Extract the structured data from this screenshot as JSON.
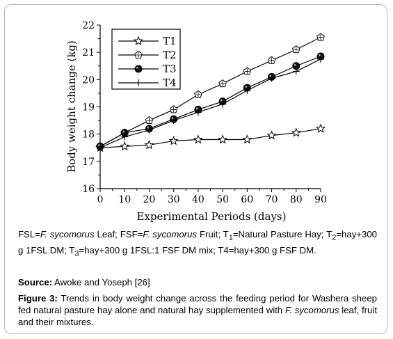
{
  "chart_data": {
    "type": "line",
    "title": "",
    "xlabel": "Experimental Periods (days)",
    "ylabel": "Body weight change (kg)",
    "xlim": [
      0,
      90
    ],
    "ylim": [
      16,
      22
    ],
    "x": [
      0,
      10,
      20,
      30,
      40,
      50,
      60,
      70,
      80,
      90
    ],
    "xticks": [
      "0",
      "10",
      "20",
      "30",
      "40",
      "50",
      "60",
      "70",
      "80",
      "90"
    ],
    "yticks": [
      "16",
      "17",
      "18",
      "19",
      "20",
      "21",
      "22"
    ],
    "grid": false,
    "legend_position": "top-left",
    "series": [
      {
        "name": "T1",
        "marker": "star",
        "values": [
          17.5,
          17.55,
          17.6,
          17.75,
          17.8,
          17.8,
          17.8,
          17.95,
          18.05,
          18.2
        ]
      },
      {
        "name": "T2",
        "marker": "open-pentagon",
        "values": [
          17.55,
          18.05,
          18.5,
          18.9,
          19.45,
          19.85,
          20.3,
          20.7,
          21.1,
          21.55
        ]
      },
      {
        "name": "T3",
        "marker": "filled-circle",
        "values": [
          17.55,
          18.05,
          18.2,
          18.55,
          18.9,
          19.2,
          19.7,
          20.1,
          20.5,
          20.85
        ]
      },
      {
        "name": "T4",
        "marker": "plus",
        "values": [
          17.5,
          17.9,
          18.15,
          18.5,
          18.8,
          19.1,
          19.6,
          20.05,
          20.3,
          20.75
        ]
      }
    ]
  },
  "legend_note": {
    "p1": "FSL=",
    "i1": "F. sycomorus",
    "p2": " Leaf; FSF=",
    "i2": "F. sycomorus",
    "p3": " Fruit; T",
    "s1": "1",
    "p4": "=Natural Pasture Hay; T",
    "s2": "2",
    "p5": "=hay+300 g 1FSL DM; T",
    "s3": "3",
    "p6": "=hay+300 g 1FSL:1 FSF DM mix; T4=hay+300 g FSF DM."
  },
  "source": {
    "label": "Source:",
    "text": " Awoke and Yoseph [26]"
  },
  "caption": {
    "label": "Figure 3:",
    "text": " Trends in body weight change across the feeding period for Washera sheep fed natural pasture hay alone and natural hay supplemented with ",
    "italic": "F. sycomorus",
    "tail": " leaf, fruit and their mixtures."
  }
}
